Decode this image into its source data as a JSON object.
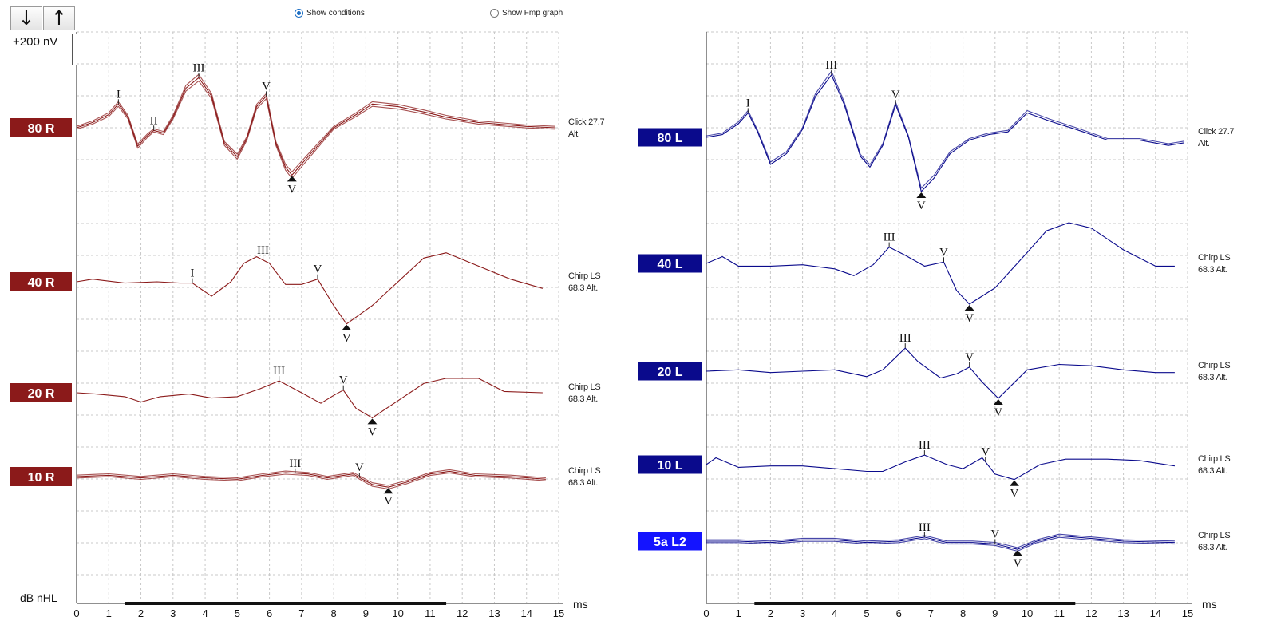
{
  "toolbar": {
    "down_arrow": "↓",
    "up_arrow": "↑"
  },
  "options": {
    "show_conditions": {
      "label": "Show conditions",
      "selected": true
    },
    "show_fmp": {
      "label": "Show Fmp graph",
      "selected": false
    }
  },
  "scale_label": "+200 nV",
  "y_unit": "dB nHL",
  "colors": {
    "right_ear": "#8b1a1a",
    "left_ear": "#0a0a8c",
    "left_highlight": "#1414ff",
    "grid": "#c8c8c8"
  },
  "chart_data": [
    {
      "type": "line",
      "panel": "right-ear",
      "x_unit": "ms",
      "xlim": [
        0,
        15
      ],
      "x_ticks": [
        "0",
        "1",
        "2",
        "3",
        "4",
        "5",
        "6",
        "7",
        "8",
        "9",
        "10",
        "11",
        "12",
        "13",
        "14",
        "15"
      ],
      "grid": true,
      "traces": [
        {
          "label": "80 R",
          "condition": [
            "Click 27.7",
            "Alt."
          ],
          "replicates": 3,
          "waveform": [
            [
              0,
              0
            ],
            [
              0.5,
              0.2
            ],
            [
              1,
              0.5
            ],
            [
              1.3,
              0.9
            ],
            [
              1.6,
              0.4
            ],
            [
              1.9,
              -0.7
            ],
            [
              2.2,
              -0.3
            ],
            [
              2.4,
              -0.1
            ],
            [
              2.7,
              -0.2
            ],
            [
              3,
              0.4
            ],
            [
              3.4,
              1.5
            ],
            [
              3.8,
              1.9
            ],
            [
              4.2,
              1.2
            ],
            [
              4.6,
              -0.6
            ],
            [
              5,
              -1.1
            ],
            [
              5.3,
              -0.4
            ],
            [
              5.6,
              0.8
            ],
            [
              5.9,
              1.2
            ],
            [
              6.2,
              -0.6
            ],
            [
              6.5,
              -1.5
            ],
            [
              6.7,
              -1.8
            ],
            [
              7.2,
              -1.1
            ],
            [
              8,
              0
            ],
            [
              8.7,
              0.5
            ],
            [
              9.2,
              0.9
            ],
            [
              10,
              0.8
            ],
            [
              10.8,
              0.6
            ],
            [
              11.5,
              0.4
            ],
            [
              12.5,
              0.2
            ],
            [
              14,
              0.05
            ],
            [
              14.9,
              0
            ]
          ],
          "peaks": [
            {
              "label": "I",
              "x": 1.3
            },
            {
              "label": "II",
              "x": 2.4
            },
            {
              "label": "III",
              "x": 3.8
            },
            {
              "label": "V",
              "x": 5.9
            }
          ],
          "trough": {
            "label": "V",
            "x": 6.7
          }
        },
        {
          "label": "40 R",
          "condition": [
            "Chirp LS",
            "68.3 Alt."
          ],
          "replicates": 1,
          "waveform": [
            [
              0,
              0
            ],
            [
              0.5,
              0.1
            ],
            [
              1.5,
              -0.05
            ],
            [
              2.5,
              0
            ],
            [
              3.2,
              -0.05
            ],
            [
              3.6,
              -0.05
            ],
            [
              4.2,
              -0.55
            ],
            [
              4.8,
              0
            ],
            [
              5.2,
              0.7
            ],
            [
              5.6,
              0.95
            ],
            [
              6,
              0.7
            ],
            [
              6.5,
              -0.1
            ],
            [
              7,
              -0.1
            ],
            [
              7.5,
              0.1
            ],
            [
              8,
              -0.9
            ],
            [
              8.4,
              -1.6
            ],
            [
              9.2,
              -0.9
            ],
            [
              10,
              0
            ],
            [
              10.8,
              0.9
            ],
            [
              11.5,
              1.1
            ],
            [
              12.5,
              0.6
            ],
            [
              13.5,
              0.1
            ],
            [
              14.5,
              -0.25
            ]
          ],
          "peaks": [
            {
              "label": "I",
              "x": 3.6
            },
            {
              "label": "III",
              "x": 5.8
            },
            {
              "label": "V",
              "x": 7.5
            }
          ],
          "trough": {
            "label": "V",
            "x": 8.4
          }
        },
        {
          "label": "20 R",
          "condition": [
            "Chirp LS",
            "68.3 Alt."
          ],
          "replicates": 1,
          "waveform": [
            [
              0,
              0
            ],
            [
              0.6,
              -0.05
            ],
            [
              1.5,
              -0.15
            ],
            [
              2,
              -0.35
            ],
            [
              2.6,
              -0.15
            ],
            [
              3.5,
              -0.05
            ],
            [
              4.2,
              -0.2
            ],
            [
              5,
              -0.15
            ],
            [
              5.7,
              0.15
            ],
            [
              6.3,
              0.45
            ],
            [
              7,
              0
            ],
            [
              7.6,
              -0.4
            ],
            [
              8,
              -0.1
            ],
            [
              8.3,
              0.1
            ],
            [
              8.7,
              -0.6
            ],
            [
              9.2,
              -0.95
            ],
            [
              10,
              -0.3
            ],
            [
              10.8,
              0.35
            ],
            [
              11.5,
              0.55
            ],
            [
              12.5,
              0.55
            ],
            [
              13.3,
              0.05
            ],
            [
              14.5,
              0
            ]
          ],
          "peaks": [
            {
              "label": "III",
              "x": 6.3
            },
            {
              "label": "V",
              "x": 8.3
            }
          ],
          "trough": {
            "label": "V",
            "x": 9.2
          }
        },
        {
          "label": "10 R",
          "condition": [
            "Chirp LS",
            "68.3 Alt."
          ],
          "replicates": 3,
          "waveform": [
            [
              0,
              0
            ],
            [
              1,
              0.05
            ],
            [
              2,
              -0.05
            ],
            [
              3,
              0.05
            ],
            [
              4,
              -0.05
            ],
            [
              5,
              -0.1
            ],
            [
              5.8,
              0.05
            ],
            [
              6.5,
              0.15
            ],
            [
              7.2,
              0.1
            ],
            [
              7.8,
              -0.05
            ],
            [
              8.6,
              0.1
            ],
            [
              9.2,
              -0.3
            ],
            [
              9.7,
              -0.4
            ],
            [
              10.3,
              -0.2
            ],
            [
              11,
              0.1
            ],
            [
              11.6,
              0.2
            ],
            [
              12.4,
              0.05
            ],
            [
              13.5,
              0
            ],
            [
              14.6,
              -0.1
            ]
          ],
          "peaks": [
            {
              "label": "III",
              "x": 6.8
            },
            {
              "label": "V",
              "x": 8.8
            }
          ],
          "trough": {
            "label": "V",
            "x": 9.7
          }
        }
      ]
    },
    {
      "type": "line",
      "panel": "left-ear",
      "x_unit": "ms",
      "xlim": [
        0,
        15
      ],
      "x_ticks": [
        "0",
        "1",
        "2",
        "3",
        "4",
        "5",
        "6",
        "7",
        "8",
        "9",
        "10",
        "11",
        "12",
        "13",
        "14",
        "15"
      ],
      "grid": true,
      "traces": [
        {
          "label": "80 L",
          "condition": [
            "Click 27.7",
            "Alt."
          ],
          "replicates": 2,
          "waveform": [
            [
              0,
              0
            ],
            [
              0.5,
              0.1
            ],
            [
              1,
              0.5
            ],
            [
              1.3,
              0.9
            ],
            [
              1.6,
              0.2
            ],
            [
              2,
              -1
            ],
            [
              2.5,
              -0.6
            ],
            [
              3,
              0.3
            ],
            [
              3.4,
              1.5
            ],
            [
              3.9,
              2.3
            ],
            [
              4.3,
              1.2
            ],
            [
              4.8,
              -0.7
            ],
            [
              5.1,
              -1.1
            ],
            [
              5.5,
              -0.3
            ],
            [
              5.9,
              1.2
            ],
            [
              6.3,
              0
            ],
            [
              6.7,
              -2
            ],
            [
              7.1,
              -1.5
            ],
            [
              7.6,
              -0.6
            ],
            [
              8.2,
              -0.1
            ],
            [
              8.8,
              0.1
            ],
            [
              9.4,
              0.2
            ],
            [
              10,
              0.9
            ],
            [
              10.7,
              0.6
            ],
            [
              11.5,
              0.3
            ],
            [
              12.5,
              -0.1
            ],
            [
              13.5,
              -0.1
            ],
            [
              14.4,
              -0.3
            ],
            [
              14.9,
              -0.2
            ]
          ],
          "peaks": [
            {
              "label": "I",
              "x": 1.3
            },
            {
              "label": "III",
              "x": 3.9
            },
            {
              "label": "V",
              "x": 5.9
            }
          ],
          "trough": {
            "label": "V",
            "x": 6.7
          }
        },
        {
          "label": "40 L",
          "condition": [
            "Chirp LS",
            "68.3 Alt."
          ],
          "replicates": 1,
          "waveform": [
            [
              0,
              0
            ],
            [
              0.5,
              0.25
            ],
            [
              1,
              -0.1
            ],
            [
              2,
              -0.1
            ],
            [
              3,
              -0.05
            ],
            [
              4,
              -0.2
            ],
            [
              4.6,
              -0.45
            ],
            [
              5.2,
              -0.05
            ],
            [
              5.7,
              0.6
            ],
            [
              6.2,
              0.3
            ],
            [
              6.8,
              -0.1
            ],
            [
              7.4,
              0.05
            ],
            [
              7.8,
              -1
            ],
            [
              8.2,
              -1.5
            ],
            [
              9,
              -0.9
            ],
            [
              10,
              0.4
            ],
            [
              10.6,
              1.2
            ],
            [
              11.3,
              1.5
            ],
            [
              12,
              1.3
            ],
            [
              13,
              0.5
            ],
            [
              14,
              -0.1
            ],
            [
              14.6,
              -0.1
            ]
          ],
          "peaks": [
            {
              "label": "III",
              "x": 5.7
            },
            {
              "label": "V",
              "x": 7.4
            }
          ],
          "trough": {
            "label": "V",
            "x": 8.2
          }
        },
        {
          "label": "20 L",
          "condition": [
            "Chirp LS",
            "68.3 Alt."
          ],
          "replicates": 1,
          "waveform": [
            [
              0,
              0
            ],
            [
              1,
              0.05
            ],
            [
              2,
              -0.05
            ],
            [
              3,
              0
            ],
            [
              4,
              0.05
            ],
            [
              5,
              -0.2
            ],
            [
              5.5,
              0.05
            ],
            [
              6.2,
              0.85
            ],
            [
              6.6,
              0.35
            ],
            [
              7.3,
              -0.25
            ],
            [
              7.8,
              -0.1
            ],
            [
              8.2,
              0.15
            ],
            [
              8.6,
              -0.4
            ],
            [
              9.1,
              -1
            ],
            [
              10,
              0.05
            ],
            [
              11,
              0.25
            ],
            [
              12,
              0.2
            ],
            [
              13,
              0.05
            ],
            [
              14,
              -0.05
            ],
            [
              14.6,
              -0.05
            ]
          ],
          "peaks": [
            {
              "label": "III",
              "x": 6.2
            },
            {
              "label": "V",
              "x": 8.2
            }
          ],
          "trough": {
            "label": "V",
            "x": 9.1
          }
        },
        {
          "label": "10 L",
          "condition": [
            "Chirp LS",
            "68.3 Alt."
          ],
          "replicates": 1,
          "waveform": [
            [
              0,
              0
            ],
            [
              0.3,
              0.25
            ],
            [
              1,
              -0.1
            ],
            [
              2,
              -0.05
            ],
            [
              3,
              -0.05
            ],
            [
              4,
              -0.15
            ],
            [
              5,
              -0.25
            ],
            [
              5.5,
              -0.25
            ],
            [
              6.2,
              0.1
            ],
            [
              6.8,
              0.35
            ],
            [
              7.5,
              0
            ],
            [
              8,
              -0.15
            ],
            [
              8.6,
              0.25
            ],
            [
              9,
              -0.35
            ],
            [
              9.6,
              -0.55
            ],
            [
              10.4,
              0
            ],
            [
              11.2,
              0.2
            ],
            [
              12.5,
              0.2
            ],
            [
              13.5,
              0.15
            ],
            [
              14.6,
              -0.05
            ]
          ],
          "peaks": [
            {
              "label": "III",
              "x": 6.8
            },
            {
              "label": "V",
              "x": 8.7
            }
          ],
          "trough": {
            "label": "V",
            "x": 9.6
          }
        },
        {
          "label": "5a L2",
          "condition": [
            "Chirp LS",
            "68.3 Alt."
          ],
          "replicates": 3,
          "highlighted": true,
          "waveform": [
            [
              0,
              0
            ],
            [
              1,
              0
            ],
            [
              2,
              -0.05
            ],
            [
              3,
              0.05
            ],
            [
              4,
              0.05
            ],
            [
              5,
              -0.05
            ],
            [
              6,
              0
            ],
            [
              6.8,
              0.15
            ],
            [
              7.5,
              -0.05
            ],
            [
              8.3,
              -0.05
            ],
            [
              9,
              -0.1
            ],
            [
              9.7,
              -0.3
            ],
            [
              10.3,
              0
            ],
            [
              11,
              0.2
            ],
            [
              12,
              0.1
            ],
            [
              13,
              0
            ],
            [
              14.6,
              -0.05
            ]
          ],
          "peaks": [
            {
              "label": "III",
              "x": 6.8
            },
            {
              "label": "V",
              "x": 9
            }
          ],
          "trough": {
            "label": "V",
            "x": 9.7
          }
        }
      ]
    }
  ]
}
